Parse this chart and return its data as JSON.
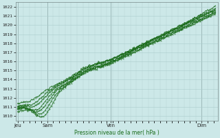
{
  "title": "Pression niveau de la mer( hPa )",
  "xlabel_ticks": [
    "Jeu",
    "Sam",
    "Ven",
    "Dim"
  ],
  "xlabel_tick_positions": [
    0.0,
    0.15,
    0.47,
    0.93
  ],
  "ylim": [
    1009.5,
    1022.5
  ],
  "yticks": [
    1010,
    1011,
    1012,
    1013,
    1014,
    1015,
    1016,
    1017,
    1018,
    1019,
    1020,
    1021,
    1022
  ],
  "bg_color": "#cce8e8",
  "grid_color": "#aacccc",
  "line_color": "#1a6b1a",
  "n_points": 300
}
